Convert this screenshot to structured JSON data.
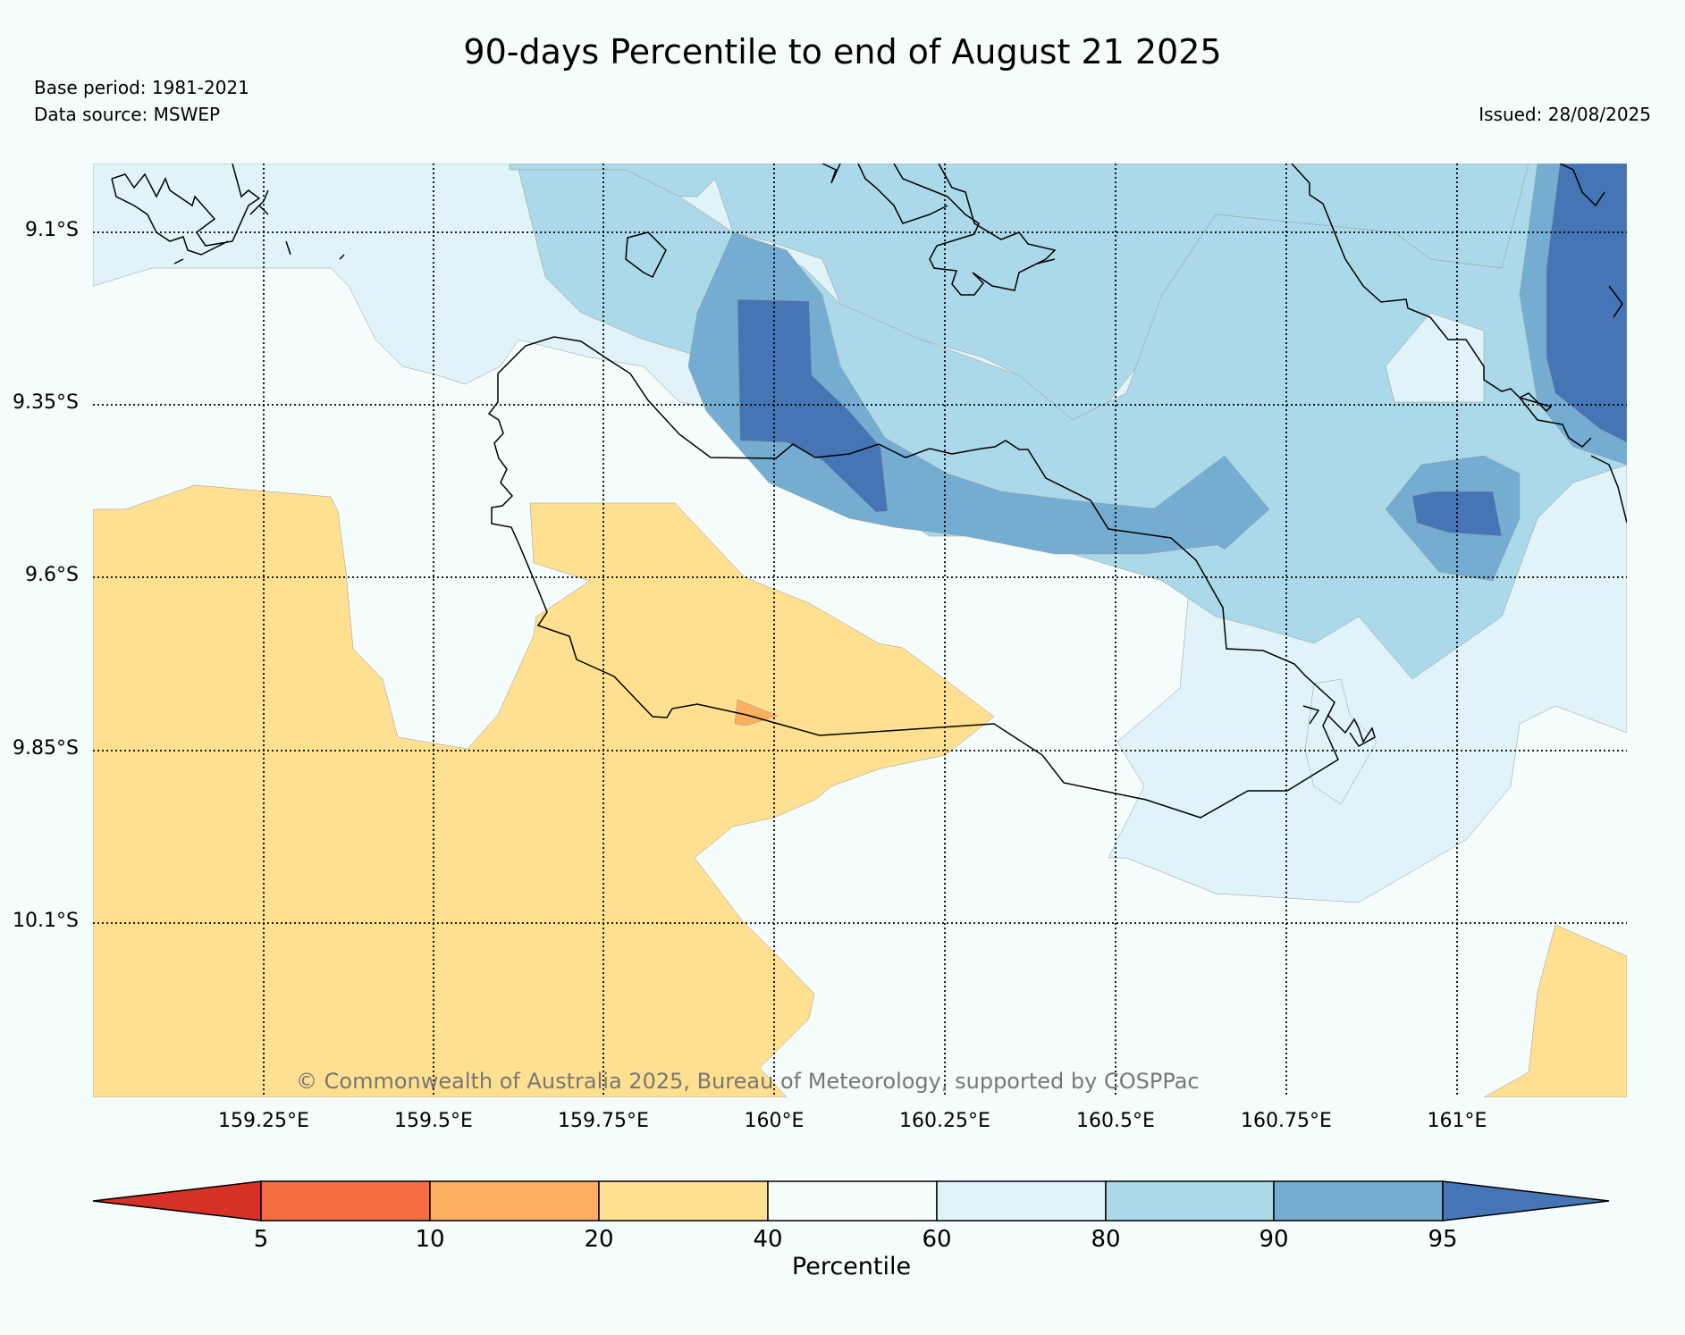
{
  "header": {
    "title": "90-days Percentile to end of August 21 2025",
    "base_period": "Base period: 1981-2021",
    "data_source": "Data source: MSWEP",
    "issued": "Issued: 28/08/2025"
  },
  "map": {
    "lat_labels": [
      "9.1°S",
      "9.35°S",
      "9.6°S",
      "9.85°S",
      "10.1°S"
    ],
    "lon_labels": [
      "159.25°E",
      "159.5°E",
      "159.75°E",
      "160°E",
      "160.25°E",
      "160.5°E",
      "160.75°E",
      "161°E"
    ],
    "copyright": "© Commonwealth of Australia 2025, Bureau of Meteorology, supported by COSPPac",
    "grid": true
  },
  "colorbar": {
    "label": "Percentile",
    "ticks": [
      "5",
      "10",
      "20",
      "40",
      "60",
      "80",
      "90",
      "95"
    ],
    "colors": [
      "#d73027",
      "#f46d43",
      "#fdae61",
      "#fee090",
      "#f5fcfc",
      "#e0f3f8",
      "#abd9e9",
      "#74add1",
      "#4575b4"
    ]
  }
}
